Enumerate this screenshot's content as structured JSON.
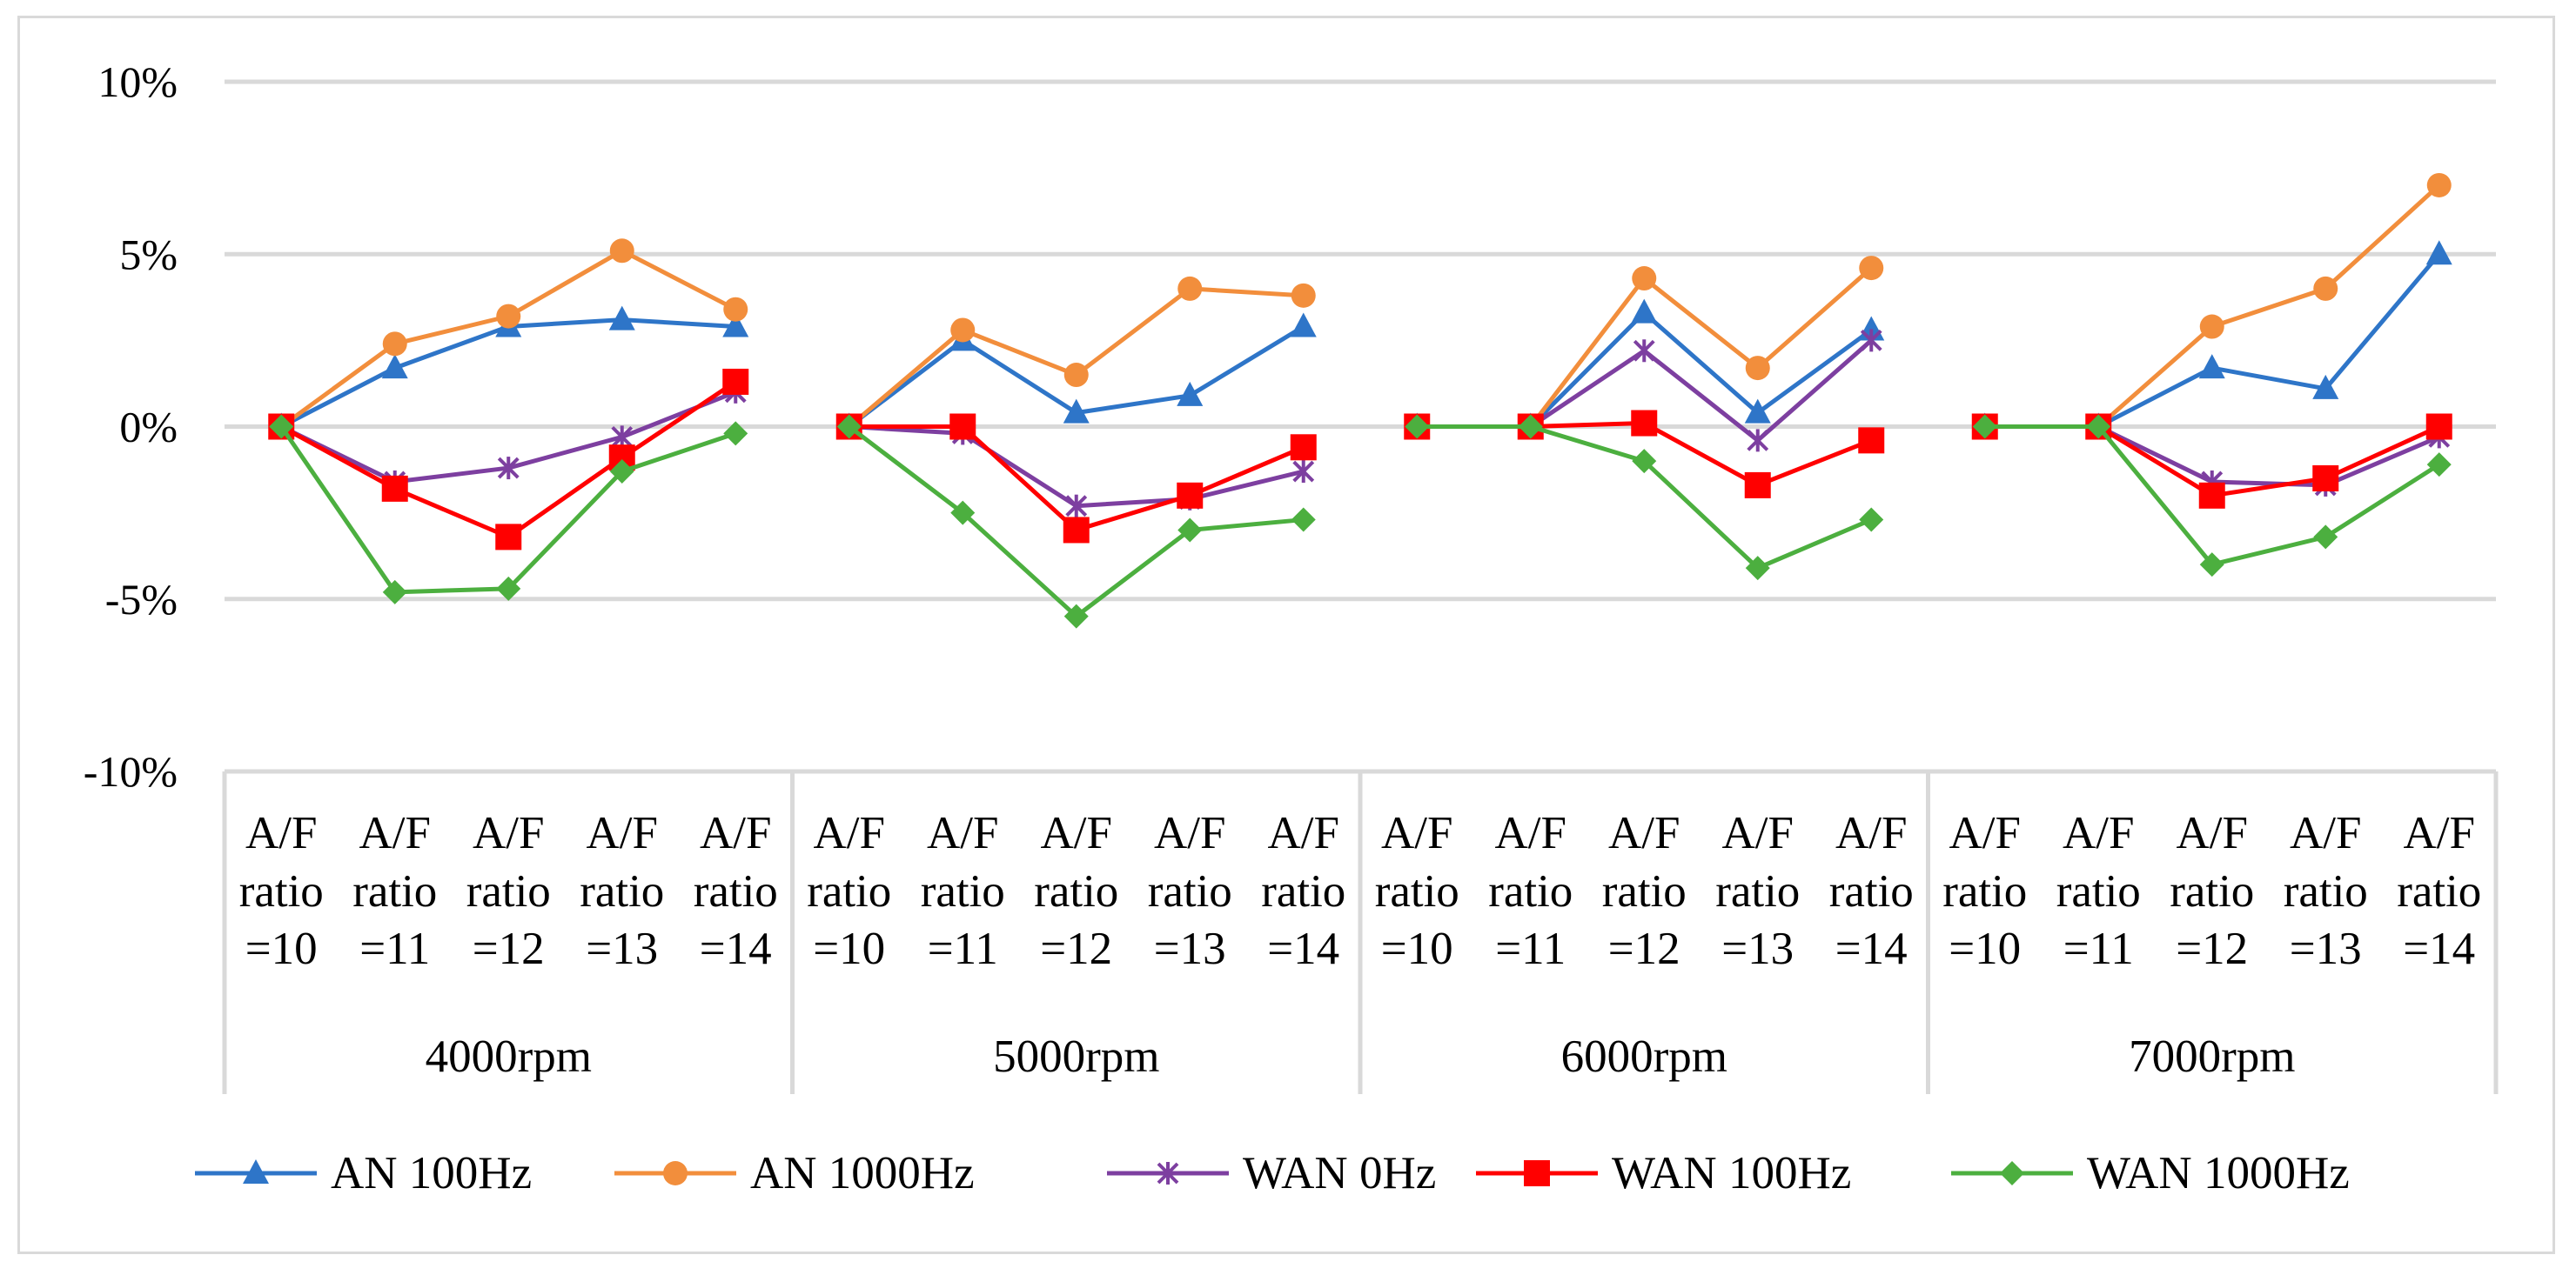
{
  "chart_data": {
    "type": "line",
    "title": "",
    "xlabel": "",
    "ylabel": "",
    "ylim": [
      -0.1,
      0.1
    ],
    "y_ticks": [
      0.1,
      0.05,
      0.0,
      -0.05,
      -0.1
    ],
    "y_tick_labels": [
      "10%",
      "5%",
      "0%",
      "-5%",
      "-10%"
    ],
    "grid": "horizontal",
    "legend_position": "bottom",
    "groups": [
      {
        "name": "4000rpm",
        "categories": [
          [
            "A/F",
            "ratio",
            "=10"
          ],
          [
            "A/F",
            "ratio",
            "=11"
          ],
          [
            "A/F",
            "ratio",
            "=12"
          ],
          [
            "A/F",
            "ratio",
            "=13"
          ],
          [
            "A/F",
            "ratio",
            "=14"
          ]
        ]
      },
      {
        "name": "5000rpm",
        "categories": [
          [
            "A/F",
            "ratio",
            "=10"
          ],
          [
            "A/F",
            "ratio",
            "=11"
          ],
          [
            "A/F",
            "ratio",
            "=12"
          ],
          [
            "A/F",
            "ratio",
            "=13"
          ],
          [
            "A/F",
            "ratio",
            "=14"
          ]
        ]
      },
      {
        "name": "6000rpm",
        "categories": [
          [
            "A/F",
            "ratio",
            "=10"
          ],
          [
            "A/F",
            "ratio",
            "=11"
          ],
          [
            "A/F",
            "ratio",
            "=12"
          ],
          [
            "A/F",
            "ratio",
            "=13"
          ],
          [
            "A/F",
            "ratio",
            "=14"
          ]
        ]
      },
      {
        "name": "7000rpm",
        "categories": [
          [
            "A/F",
            "ratio",
            "=10"
          ],
          [
            "A/F",
            "ratio",
            "=11"
          ],
          [
            "A/F",
            "ratio",
            "=12"
          ],
          [
            "A/F",
            "ratio",
            "=13"
          ],
          [
            "A/F",
            "ratio",
            "=14"
          ]
        ]
      }
    ],
    "series": [
      {
        "name": "AN 100Hz",
        "color": "#2e75c8",
        "marker": "triangle",
        "values": [
          [
            0.0,
            0.017,
            0.029,
            0.031,
            0.029
          ],
          [
            0.0,
            0.025,
            0.004,
            0.009,
            0.029
          ],
          [
            0.0,
            0.0,
            0.033,
            0.004,
            0.028
          ],
          [
            0.0,
            0.0,
            0.017,
            0.011,
            0.05
          ]
        ]
      },
      {
        "name": "AN 1000Hz",
        "color": "#f28e3c",
        "marker": "circle",
        "values": [
          [
            0.0,
            0.024,
            0.032,
            0.051,
            0.034
          ],
          [
            0.0,
            0.028,
            0.015,
            0.04,
            0.038
          ],
          [
            0.0,
            0.0,
            0.043,
            0.017,
            0.046
          ],
          [
            0.0,
            0.0,
            0.029,
            0.04,
            0.07
          ]
        ]
      },
      {
        "name": "WAN 0Hz",
        "color": "#7d3fa0",
        "marker": "star",
        "values": [
          [
            0.0,
            -0.016,
            -0.012,
            -0.003,
            0.01
          ],
          [
            0.0,
            -0.002,
            -0.023,
            -0.021,
            -0.013
          ],
          [
            0.0,
            0.0,
            0.022,
            -0.004,
            0.025
          ],
          [
            0.0,
            0.0,
            -0.016,
            -0.017,
            -0.003
          ]
        ]
      },
      {
        "name": "WAN 100Hz",
        "color": "#ff0000",
        "marker": "square",
        "values": [
          [
            0.0,
            -0.018,
            -0.032,
            -0.009,
            0.013
          ],
          [
            0.0,
            0.0,
            -0.03,
            -0.02,
            -0.006
          ],
          [
            0.0,
            0.0,
            0.001,
            -0.017,
            -0.004
          ],
          [
            0.0,
            0.0,
            -0.02,
            -0.015,
            0.0
          ]
        ]
      },
      {
        "name": "WAN 1000Hz",
        "color": "#4caf3f",
        "marker": "diamond",
        "values": [
          [
            0.0,
            -0.048,
            -0.047,
            -0.013,
            -0.002
          ],
          [
            0.0,
            -0.025,
            -0.055,
            -0.03,
            -0.027
          ],
          [
            0.0,
            0.0,
            -0.01,
            -0.041,
            -0.027
          ],
          [
            0.0,
            0.0,
            -0.04,
            -0.032,
            -0.011
          ]
        ]
      }
    ]
  }
}
